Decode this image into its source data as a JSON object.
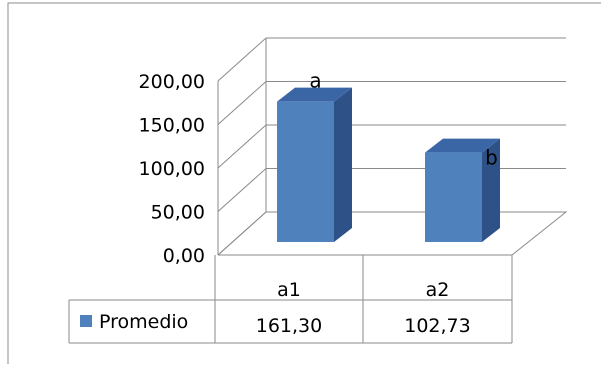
{
  "chart_data": {
    "type": "bar",
    "categories": [
      "a1",
      "a2"
    ],
    "series": [
      {
        "name": "Promedio",
        "values": [
          161.3,
          102.73
        ],
        "labels": [
          "161,30",
          "102,73"
        ]
      }
    ],
    "bar_annotations": [
      "a",
      "b"
    ],
    "y_ticks": [
      "0,00",
      "50,00",
      "100,00",
      "150,00",
      "200,00"
    ],
    "ylim": [
      0,
      200
    ],
    "grid": true,
    "legend": "data-table",
    "colors": {
      "front": "#4f81bd",
      "side": "#2e5287",
      "top": "#3a66a6"
    }
  }
}
